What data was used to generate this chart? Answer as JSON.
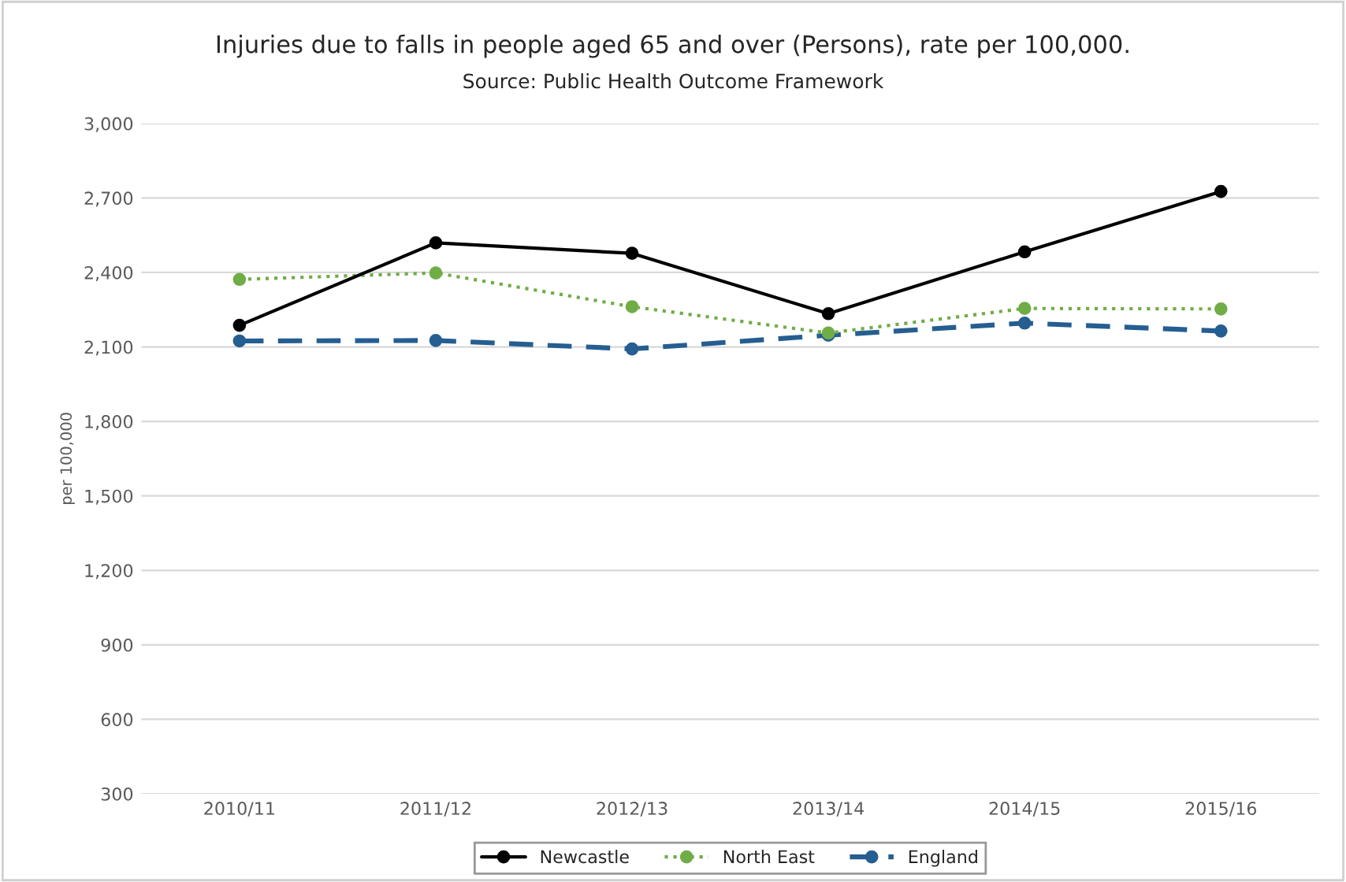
{
  "chart_data": {
    "type": "line",
    "title": "Injuries due to falls in people aged 65 and over (Persons), rate per 100,000.",
    "subtitle": "Source: Public Health Outcome Framework",
    "ylabel": "per 100,000",
    "categories": [
      "2010/11",
      "2011/12",
      "2012/13",
      "2013/14",
      "2014/15",
      "2015/16"
    ],
    "series": [
      {
        "name": "Newcastle",
        "color": "#000000",
        "line_style": "solid",
        "values": [
          2187,
          2519,
          2477,
          2234,
          2483,
          2726
        ]
      },
      {
        "name": "North East",
        "color": "#70ad47",
        "line_style": "dotted",
        "values": [
          2372,
          2398,
          2262,
          2156,
          2255,
          2253
        ]
      },
      {
        "name": "England",
        "color": "#255e91",
        "line_style": "dashed",
        "values": [
          2124,
          2126,
          2092,
          2147,
          2196,
          2164
        ]
      }
    ],
    "ylim": [
      300,
      3000
    ],
    "yticks": [
      {
        "value": 300,
        "label": "300"
      },
      {
        "value": 600,
        "label": "600"
      },
      {
        "value": 900,
        "label": "900"
      },
      {
        "value": 1200,
        "label": "1,200"
      },
      {
        "value": 1500,
        "label": "1,500"
      },
      {
        "value": 1800,
        "label": "1,800"
      },
      {
        "value": 2100,
        "label": "2,100"
      },
      {
        "value": 2400,
        "label": "2,400"
      },
      {
        "value": 2700,
        "label": "2,700"
      },
      {
        "value": 3000,
        "label": "3,000"
      }
    ],
    "grid": "y",
    "legend": "bottom",
    "marker": "circle"
  }
}
